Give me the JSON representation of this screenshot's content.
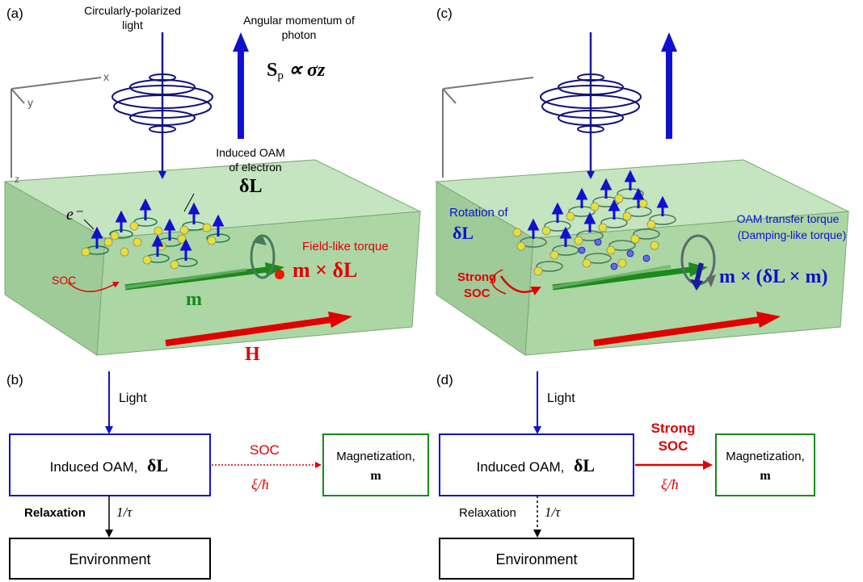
{
  "colors": {
    "blue": "#1010d0",
    "red": "#e00000",
    "green": "#1a8a1a",
    "slab": "#a8d3a2",
    "navy": "#12127a"
  },
  "panel_a": {
    "label": "(a)",
    "light_label_1": "Circularly-polarized",
    "light_label_2": "light",
    "photon_label_1": "Angular momentum of",
    "photon_label_2": "photon",
    "photon_formula": "S",
    "photon_formula_sub": "p",
    "photon_formula_rest": " ∝ σz",
    "axis_x": "x",
    "axis_y": "y",
    "axis_z": "z",
    "oam_label_1": "Induced OAM",
    "oam_label_2": "of electron",
    "oam_symbol": "δL",
    "electron_label": "e⁻",
    "soc_label": "SOC",
    "torque_label": "Field-like torque",
    "torque_formula": "m × δL",
    "m_label": "m",
    "h_label": "H"
  },
  "panel_b": {
    "label": "(b)",
    "light_label": "Light",
    "induced_box": "Induced OAM,",
    "induced_symbol": "δL",
    "soc_label": "SOC",
    "soc_rate": "ξ/ħ",
    "mag_box_1": "Magnetization,",
    "mag_box_2": "m",
    "relax_label": "Relaxation",
    "relax_rate": "1/τ",
    "env_box": "Environment"
  },
  "panel_c": {
    "label": "(c)",
    "rotation_label_1": "Rotation of",
    "rotation_label_2": "δL",
    "transfer_label_1": "OAM transfer torque",
    "transfer_label_2": "(Damping-like torque)",
    "strong_soc_1": "Strong",
    "strong_soc_2": "SOC",
    "torque_formula": "m × (δL × m)"
  },
  "panel_d": {
    "label": "(d)",
    "light_label": "Light",
    "induced_box": "Induced OAM,",
    "induced_symbol": "δL",
    "soc_label_1": "Strong",
    "soc_label_2": "SOC",
    "soc_rate": "ξ/ħ",
    "mag_box_1": "Magnetization,",
    "mag_box_2": "m",
    "relax_label": "Relaxation",
    "relax_rate": "1/τ",
    "env_box": "Environment"
  }
}
